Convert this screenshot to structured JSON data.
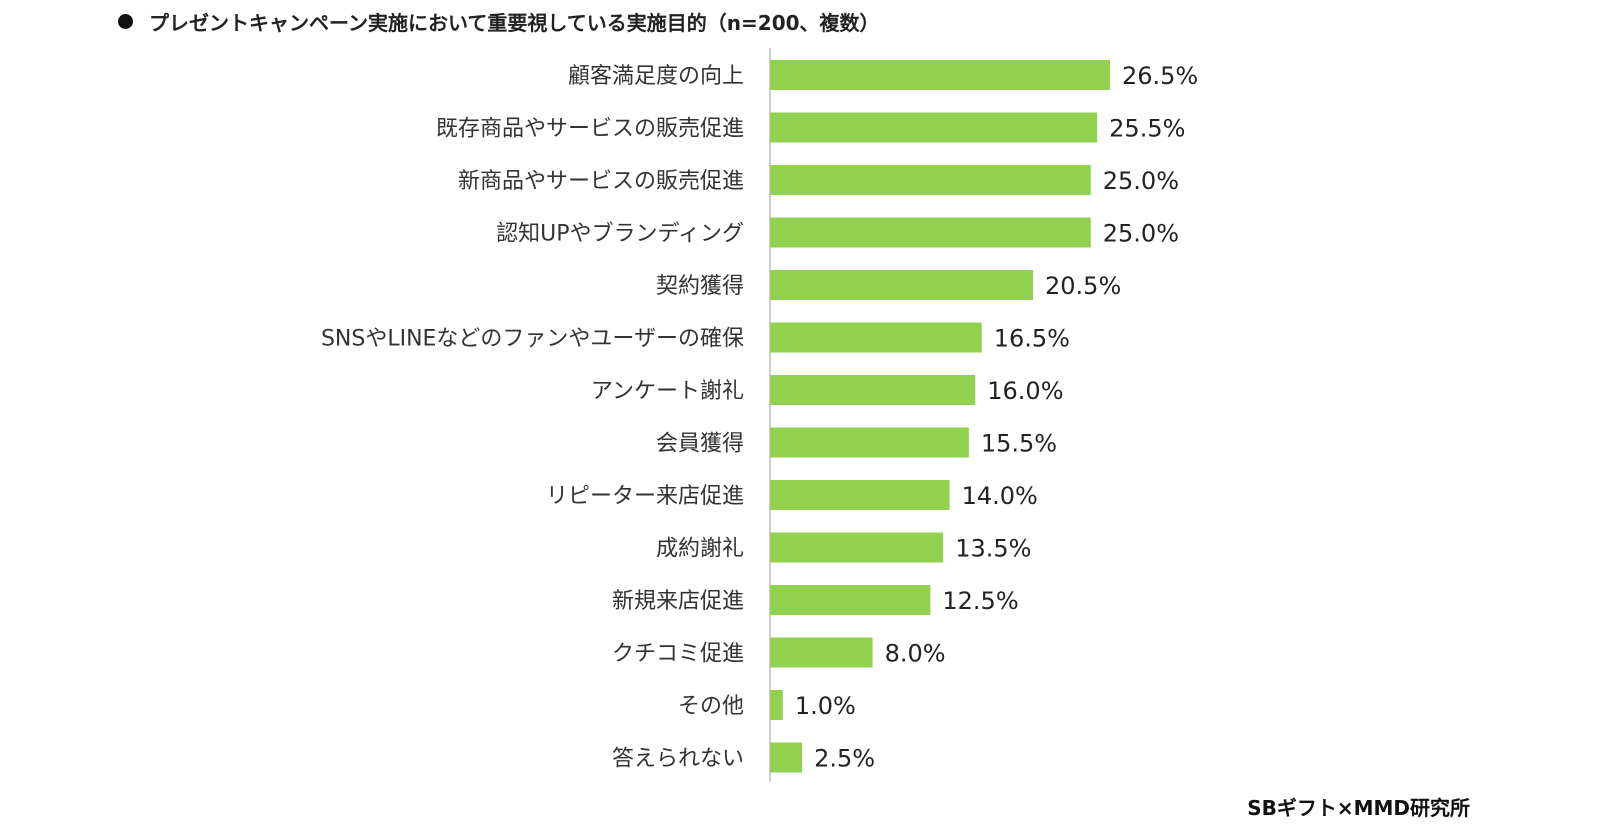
{
  "chart_title": "プレゼントキャンペーン実施において重要視している実施目的（n=200、複数）",
  "source": "SBギフト×MMD研究所",
  "colors": {
    "bar": "#92D050",
    "axis": "#BFBFBF"
  },
  "chart_data": {
    "type": "bar",
    "orientation": "horizontal",
    "title": "プレゼントキャンペーン実施において重要視している実施目的（n=200、複数）",
    "categories": [
      "顧客満足度の向上",
      "既存商品やサービスの販売促進",
      "新商品やサービスの販売促進",
      "認知UPやブランディング",
      "契約獲得",
      "SNSやLINEなどのファンやユーザーの確保",
      "アンケート謝礼",
      "会員獲得",
      "リピーター来店促進",
      "成約謝礼",
      "新規来店促進",
      "クチコミ促進",
      "その他",
      "答えられない"
    ],
    "values": [
      26.5,
      25.5,
      25.0,
      25.0,
      20.5,
      16.5,
      16.0,
      15.5,
      14.0,
      13.5,
      12.5,
      8.0,
      1.0,
      2.5
    ],
    "value_labels": [
      "26.5%",
      "25.5%",
      "25.0%",
      "25.0%",
      "20.5%",
      "16.5%",
      "16.0%",
      "15.5%",
      "14.0%",
      "13.5%",
      "12.5%",
      "8.0%",
      "1.0%",
      "2.5%"
    ],
    "unit": "%",
    "xlim": [
      0,
      30
    ],
    "grid": false,
    "legend": "none"
  }
}
